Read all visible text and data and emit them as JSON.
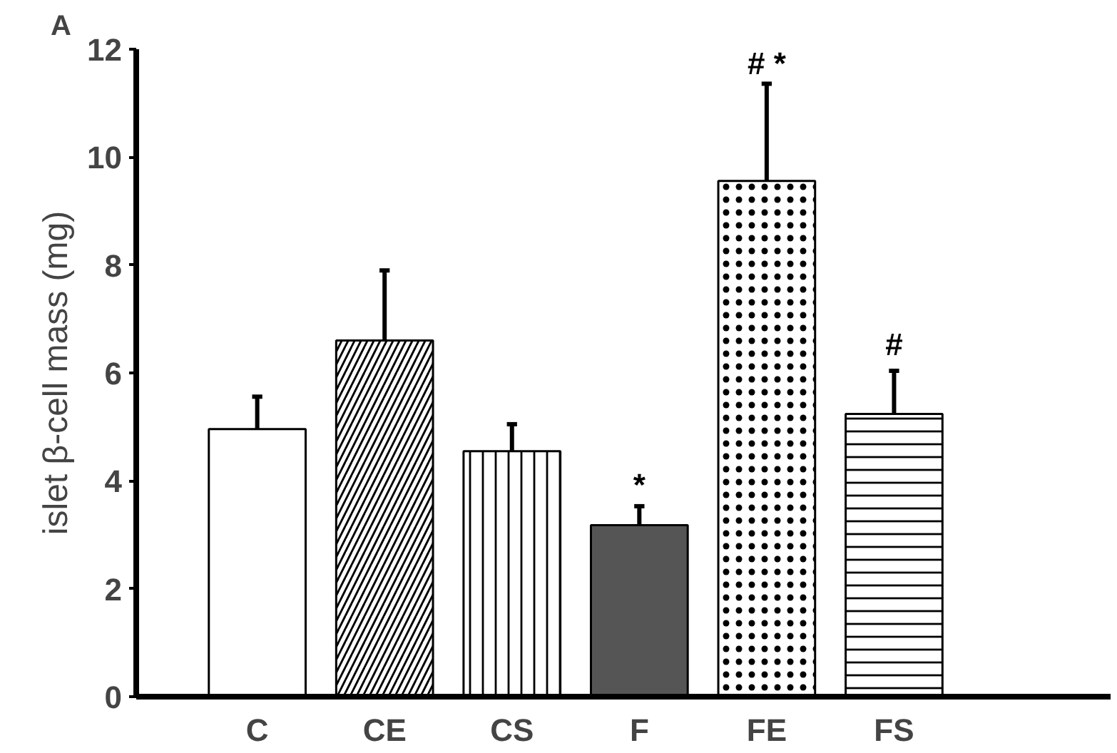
{
  "chart_data": {
    "type": "bar",
    "title": "A",
    "ylabel": "islet β-cell mass (mg)",
    "categories": [
      "C",
      "CE",
      "CS",
      "F",
      "FE",
      "FS"
    ],
    "values": [
      4.96,
      6.6,
      4.55,
      3.18,
      9.56,
      5.24
    ],
    "errors": [
      0.6,
      1.3,
      0.5,
      0.35,
      1.8,
      0.8
    ],
    "colors": [
      "#ffffff",
      "#ffffff",
      "#ffffff",
      "#555555",
      "#ffffff",
      "#ffffff"
    ],
    "ylim": [
      0,
      12
    ],
    "yticks": [
      0,
      2,
      4,
      6,
      8,
      10,
      12
    ],
    "grid": false,
    "annotations": [
      {
        "text": "*",
        "x": "F",
        "y": 3.6
      },
      {
        "text": "# *",
        "x": "FE",
        "y": 11.4
      },
      {
        "text": "#",
        "x": "FS",
        "y": 6.2
      }
    ]
  }
}
